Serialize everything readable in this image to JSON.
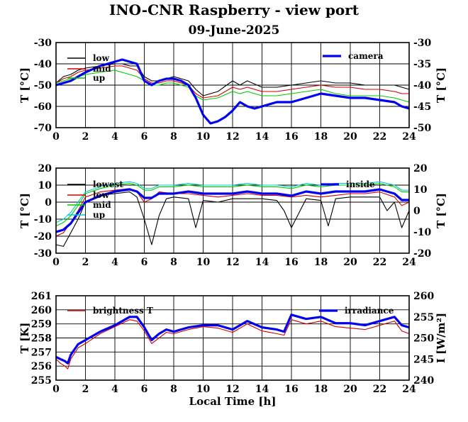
{
  "title": "INO-CNR Raspberry - view port",
  "subtitle": "09-June-2025",
  "x_axis_label": "Local Time [h]",
  "chart_data": [
    {
      "type": "line",
      "x_ticks": [
        0,
        2,
        4,
        6,
        8,
        10,
        12,
        14,
        16,
        18,
        20,
        22,
        24
      ],
      "xlim": [
        0,
        24
      ],
      "ylabel_left": "T [°C]",
      "ylabel_right": "T [°C]",
      "ylim_left": [
        -70,
        -30
      ],
      "ylim_right": [
        -50,
        -30
      ],
      "yticks_left": [
        -70,
        -60,
        -50,
        -40,
        -30
      ],
      "yticks_right": [
        -50,
        -45,
        -40,
        -35,
        -30
      ],
      "grid": true,
      "legend_left_position": "top-left",
      "legend_right_position": "top-right",
      "series": [
        {
          "name": "low",
          "color": "#000000",
          "axis": "left",
          "x": [
            0,
            0.5,
            1,
            1.5,
            2,
            3,
            4,
            4.5,
            5,
            5.5,
            6,
            6.5,
            7,
            7.5,
            8,
            8.5,
            9,
            9.5,
            10,
            11,
            12,
            12.5,
            13,
            14,
            15,
            16,
            17,
            18,
            19,
            20,
            21,
            22,
            23,
            23.5,
            24
          ],
          "y": [
            -49,
            -46,
            -45,
            -43,
            -42,
            -41,
            -40,
            -40,
            -41,
            -41,
            -46,
            -48,
            -48,
            -47,
            -46,
            -47,
            -48,
            -52,
            -55,
            -53,
            -48,
            -50,
            -48,
            -51,
            -51,
            -50,
            -49,
            -48,
            -49,
            -49,
            -50,
            -50,
            -50,
            -51,
            -52
          ]
        },
        {
          "name": "mid",
          "color": "#d00000",
          "axis": "left",
          "x": [
            0,
            0.5,
            1,
            1.5,
            2,
            3,
            4,
            4.5,
            5,
            5.5,
            6,
            6.5,
            7,
            7.5,
            8,
            8.5,
            9,
            9.5,
            10,
            11,
            12,
            12.5,
            13,
            14,
            15,
            16,
            17,
            18,
            19,
            20,
            21,
            22,
            23,
            23.5,
            24
          ],
          "y": [
            -49,
            -47,
            -46,
            -44,
            -43,
            -42,
            -41,
            -41,
            -42,
            -43,
            -47,
            -49,
            -49,
            -48,
            -48,
            -49,
            -50,
            -54,
            -56,
            -55,
            -51,
            -52,
            -51,
            -53,
            -53,
            -52,
            -51,
            -50,
            -51,
            -51,
            -52,
            -52,
            -53,
            -54,
            -54
          ]
        },
        {
          "name": "up",
          "color": "#00cc00",
          "axis": "left",
          "x": [
            0,
            0.5,
            1,
            1.5,
            2,
            3,
            4,
            4.5,
            5,
            5.5,
            6,
            6.5,
            7,
            7.5,
            8,
            8.5,
            9,
            9.5,
            10,
            11,
            12,
            12.5,
            13,
            14,
            15,
            16,
            17,
            18,
            19,
            20,
            21,
            22,
            23,
            23.5,
            24
          ],
          "y": [
            -49,
            -48,
            -47,
            -46,
            -45,
            -44,
            -43,
            -44,
            -45,
            -46,
            -48,
            -50,
            -50,
            -49,
            -49,
            -50,
            -51,
            -55,
            -57,
            -56,
            -53,
            -54,
            -53,
            -55,
            -55,
            -54,
            -53,
            -52,
            -54,
            -55,
            -55,
            -55,
            -56,
            -57,
            -58
          ]
        },
        {
          "name": "camera",
          "color": "#0000ee",
          "axis": "right",
          "x": [
            0,
            0.5,
            1,
            1.5,
            2,
            3,
            4,
            4.5,
            5,
            5.5,
            6,
            6.5,
            7,
            7.5,
            8,
            8.5,
            9,
            9.5,
            10,
            10.5,
            11,
            11.5,
            12,
            12.5,
            13,
            13.5,
            14,
            15,
            16,
            17,
            18,
            19,
            20,
            21,
            22,
            23,
            23.5,
            24
          ],
          "y": [
            -40,
            -39.5,
            -39,
            -38,
            -37,
            -35.5,
            -34.5,
            -34,
            -34.5,
            -35,
            -39,
            -40,
            -39,
            -38.5,
            -38.5,
            -39,
            -40,
            -43,
            -47,
            -49,
            -48.5,
            -47.5,
            -46,
            -44,
            -45,
            -45.5,
            -45,
            -44,
            -44,
            -43,
            -42,
            -42.5,
            -43,
            -43,
            -43.5,
            -44,
            -45,
            -45.5
          ]
        }
      ]
    },
    {
      "type": "line",
      "x_ticks": [
        0,
        2,
        4,
        6,
        8,
        10,
        12,
        14,
        16,
        18,
        20,
        22,
        24
      ],
      "xlim": [
        0,
        24
      ],
      "ylabel_left": "T [°C]",
      "ylabel_right": "T [°C]",
      "ylim_left": [
        -30,
        20
      ],
      "ylim_right": [
        -20,
        20
      ],
      "yticks_left": [
        -30,
        -20,
        -10,
        0,
        10,
        20
      ],
      "yticks_right": [
        -20,
        -10,
        0,
        10,
        20
      ],
      "grid": true,
      "legend_left_position": "top-left",
      "legend_right_position": "top-right",
      "series": [
        {
          "name": "lowest",
          "color": "#000000",
          "axis": "left",
          "x": [
            0,
            0.5,
            1,
            1.5,
            2,
            2.5,
            3,
            4,
            5,
            5.5,
            6,
            6.5,
            7,
            7.5,
            8,
            9,
            9.5,
            10,
            11,
            12,
            13,
            14,
            15,
            15.5,
            16,
            17,
            18,
            18.5,
            19,
            20,
            21,
            22,
            22.5,
            23,
            23.5,
            24
          ],
          "y": [
            -25,
            -26,
            -18,
            -10,
            0,
            2,
            4,
            5,
            6,
            3,
            -10,
            -25,
            -8,
            2,
            3,
            2,
            -15,
            1,
            0,
            2,
            2,
            2,
            1,
            -5,
            -15,
            2,
            1,
            -14,
            2,
            3,
            3,
            3,
            -5,
            0,
            -15,
            -5
          ]
        },
        {
          "name": "low",
          "color": "#d00000",
          "axis": "left",
          "x": [
            0,
            0.5,
            1,
            1.5,
            2,
            3,
            4,
            5,
            5.5,
            6,
            6.5,
            7,
            8,
            9,
            10,
            11,
            12,
            13,
            14,
            15,
            16,
            17,
            18,
            19,
            20,
            21,
            22,
            23,
            23.5,
            24
          ],
          "y": [
            -20,
            -18,
            -12,
            -5,
            3,
            6,
            7,
            8,
            6,
            0,
            2,
            6,
            5,
            5,
            4,
            3,
            4,
            5,
            4,
            4,
            3,
            4,
            3,
            4,
            5,
            5,
            6,
            3,
            -2,
            0
          ]
        },
        {
          "name": "mid",
          "color": "#00cc00",
          "axis": "left",
          "x": [
            0,
            0.5,
            1,
            1.5,
            2,
            3,
            4,
            5,
            5.5,
            6,
            6.5,
            7,
            8,
            9,
            10,
            11,
            12,
            13,
            14,
            15,
            16,
            17,
            18,
            19,
            20,
            21,
            22,
            23,
            23.5,
            24
          ],
          "y": [
            -14,
            -12,
            -8,
            -2,
            5,
            8,
            10,
            11,
            10,
            7,
            7,
            9,
            9,
            10,
            9,
            9,
            9,
            10,
            9,
            9,
            8,
            10,
            9,
            10,
            10,
            10,
            11,
            9,
            6,
            6
          ]
        },
        {
          "name": "up",
          "color": "#00cccc",
          "axis": "left",
          "x": [
            0,
            0.5,
            1,
            1.5,
            2,
            3,
            4,
            5,
            5.5,
            6,
            6.5,
            7,
            8,
            9,
            10,
            11,
            12,
            13,
            14,
            15,
            16,
            17,
            18,
            19,
            20,
            21,
            22,
            23,
            23.5,
            24
          ],
          "y": [
            -12,
            -10,
            -6,
            0,
            6,
            9,
            11,
            12,
            11,
            8,
            8,
            10,
            10,
            11,
            10,
            10,
            10,
            11,
            10,
            10,
            9,
            11,
            10,
            11,
            11,
            11,
            12,
            10,
            7,
            7
          ]
        },
        {
          "name": "inside",
          "color": "#0000ee",
          "axis": "right",
          "x": [
            0,
            0.5,
            1,
            1.5,
            2,
            3,
            4,
            5,
            5.5,
            6,
            6.5,
            7,
            8,
            9,
            10,
            11,
            12,
            13,
            14,
            15,
            16,
            17,
            18,
            19,
            20,
            21,
            22,
            23,
            23.5,
            24
          ],
          "y": [
            -10,
            -9,
            -6,
            -1,
            4,
            7,
            9,
            10,
            9,
            6,
            6,
            8,
            8,
            9,
            8,
            8,
            8,
            9,
            8,
            8,
            7,
            9,
            8,
            9,
            9,
            9,
            10,
            8,
            5,
            5
          ]
        }
      ]
    },
    {
      "type": "line",
      "x_ticks": [
        0,
        2,
        4,
        6,
        8,
        10,
        12,
        14,
        16,
        18,
        20,
        22,
        24
      ],
      "xlim": [
        0,
        24
      ],
      "ylabel_left": "T [K]",
      "ylabel_right": "I [W/m²]",
      "ylim_left": [
        255,
        261
      ],
      "ylim_right": [
        240,
        260
      ],
      "yticks_left": [
        255,
        256,
        257,
        258,
        259,
        260,
        261
      ],
      "yticks_right": [
        240,
        245,
        250,
        255,
        260
      ],
      "grid": true,
      "legend_left_position": "top-left",
      "legend_right_position": "top-right",
      "series": [
        {
          "name": "brightness T",
          "color": "#d00000",
          "axis": "left",
          "x": [
            0,
            0.3,
            0.6,
            0.8,
            1,
            1.5,
            2,
            3,
            4,
            5,
            5.5,
            6,
            6.5,
            7,
            7.5,
            8,
            9,
            10,
            11,
            12,
            13,
            14,
            15,
            15.5,
            16,
            17,
            18,
            19,
            20,
            21,
            22,
            23,
            23.5,
            24
          ],
          "y": [
            256.5,
            256.2,
            256.0,
            255.8,
            256.5,
            257.3,
            257.6,
            258.3,
            258.8,
            259.3,
            259.2,
            258.5,
            257.6,
            258.0,
            258.4,
            258.3,
            258.6,
            258.8,
            258.7,
            258.4,
            259.0,
            258.5,
            258.3,
            258.2,
            259.3,
            259.0,
            259.2,
            258.8,
            258.7,
            258.6,
            258.9,
            259.2,
            258.5,
            258.3
          ]
        },
        {
          "name": "irradiance",
          "color": "#0000ee",
          "axis": "right",
          "x": [
            0,
            0.3,
            0.6,
            0.8,
            1,
            1.5,
            2,
            3,
            4,
            5,
            5.5,
            6,
            6.5,
            7,
            7.5,
            8,
            9,
            10,
            11,
            12,
            13,
            14,
            15,
            15.5,
            16,
            17,
            18,
            19,
            20,
            21,
            22,
            23,
            23.5,
            24
          ],
          "y": [
            245.5,
            245,
            244.5,
            244,
            246,
            248.5,
            249.5,
            251.5,
            253,
            255,
            255,
            252.5,
            249.5,
            251,
            252,
            251.5,
            252.5,
            253,
            253,
            252,
            254,
            252.5,
            252,
            251.5,
            255.5,
            254.5,
            255,
            253.5,
            253.5,
            253,
            254,
            255,
            253,
            252.5
          ]
        }
      ]
    }
  ]
}
